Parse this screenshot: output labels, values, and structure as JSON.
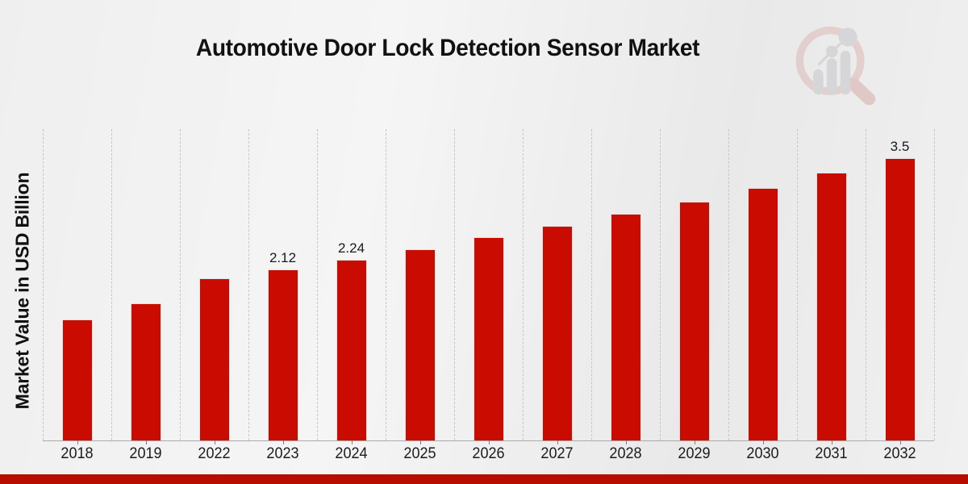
{
  "page": {
    "title": "Automotive Door Lock Detection Sensor Market",
    "watermark": "market-research-future-logo"
  },
  "chart_data": {
    "type": "bar",
    "title": "Automotive Door Lock Detection Sensor Market",
    "xlabel": "",
    "ylabel": "Market Value in USD Billion",
    "categories": [
      "2018",
      "2019",
      "2022",
      "2023",
      "2024",
      "2025",
      "2026",
      "2027",
      "2028",
      "2029",
      "2030",
      "2031",
      "2032"
    ],
    "values": [
      1.5,
      1.7,
      2.01,
      2.12,
      2.24,
      2.37,
      2.52,
      2.66,
      2.81,
      2.96,
      3.13,
      3.32,
      3.5
    ],
    "bar_labels": [
      "",
      "",
      "",
      "2.12",
      "2.24",
      "",
      "",
      "",
      "",
      "",
      "",
      "",
      "3.5"
    ],
    "ylim": [
      0,
      3.86
    ],
    "grid": "vertical-dashed-category-boundaries",
    "legend": "none",
    "bar_color": "#c90b02",
    "accent_strip_color": "#b60d00",
    "gridline_color": "#c6c6c6",
    "axis_color": "#ababab"
  }
}
